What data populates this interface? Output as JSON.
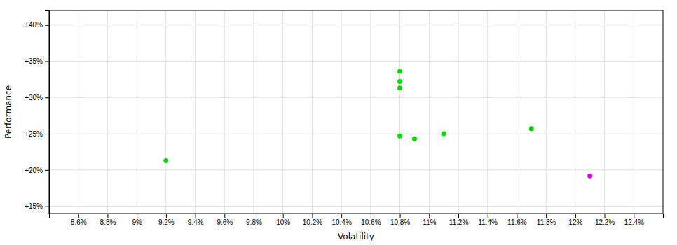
{
  "chart_data": {
    "type": "scatter",
    "xlabel": "Volatility",
    "ylabel": "Performance",
    "xlim": [
      0.084,
      0.126
    ],
    "ylim": [
      0.14,
      0.42
    ],
    "xticks": [
      {
        "value": 0.086,
        "label": "8.6%"
      },
      {
        "value": 0.088,
        "label": "8.8%"
      },
      {
        "value": 0.09,
        "label": "9%"
      },
      {
        "value": 0.092,
        "label": "9.2%"
      },
      {
        "value": 0.094,
        "label": "9.4%"
      },
      {
        "value": 0.096,
        "label": "9.6%"
      },
      {
        "value": 0.098,
        "label": "9.8%"
      },
      {
        "value": 0.1,
        "label": "10%"
      },
      {
        "value": 0.102,
        "label": "10.2%"
      },
      {
        "value": 0.104,
        "label": "10.4%"
      },
      {
        "value": 0.106,
        "label": "10.6%"
      },
      {
        "value": 0.108,
        "label": "10.8%"
      },
      {
        "value": 0.11,
        "label": "11%"
      },
      {
        "value": 0.112,
        "label": "11.2%"
      },
      {
        "value": 0.114,
        "label": "11.4%"
      },
      {
        "value": 0.116,
        "label": "11.6%"
      },
      {
        "value": 0.118,
        "label": "11.8%"
      },
      {
        "value": 0.12,
        "label": "12%"
      },
      {
        "value": 0.122,
        "label": "12.2%"
      },
      {
        "value": 0.124,
        "label": "12.4%"
      }
    ],
    "yticks": [
      {
        "value": 0.15,
        "label": "+15%"
      },
      {
        "value": 0.2,
        "label": "+20%"
      },
      {
        "value": 0.25,
        "label": "+25%"
      },
      {
        "value": 0.3,
        "label": "+30%"
      },
      {
        "value": 0.35,
        "label": "+35%"
      },
      {
        "value": 0.4,
        "label": "+40%"
      }
    ],
    "grid": true,
    "series": [
      {
        "color": "#00dd00",
        "x": [
          0.108,
          0.108,
          0.108,
          0.108,
          0.109,
          0.111,
          0.117,
          0.092
        ],
        "values": [
          0.336,
          0.322,
          0.313,
          0.247,
          0.243,
          0.25,
          0.257,
          0.213
        ]
      },
      {
        "color": "#dd00dd",
        "x": [
          0.121
        ],
        "values": [
          0.192
        ]
      }
    ]
  }
}
